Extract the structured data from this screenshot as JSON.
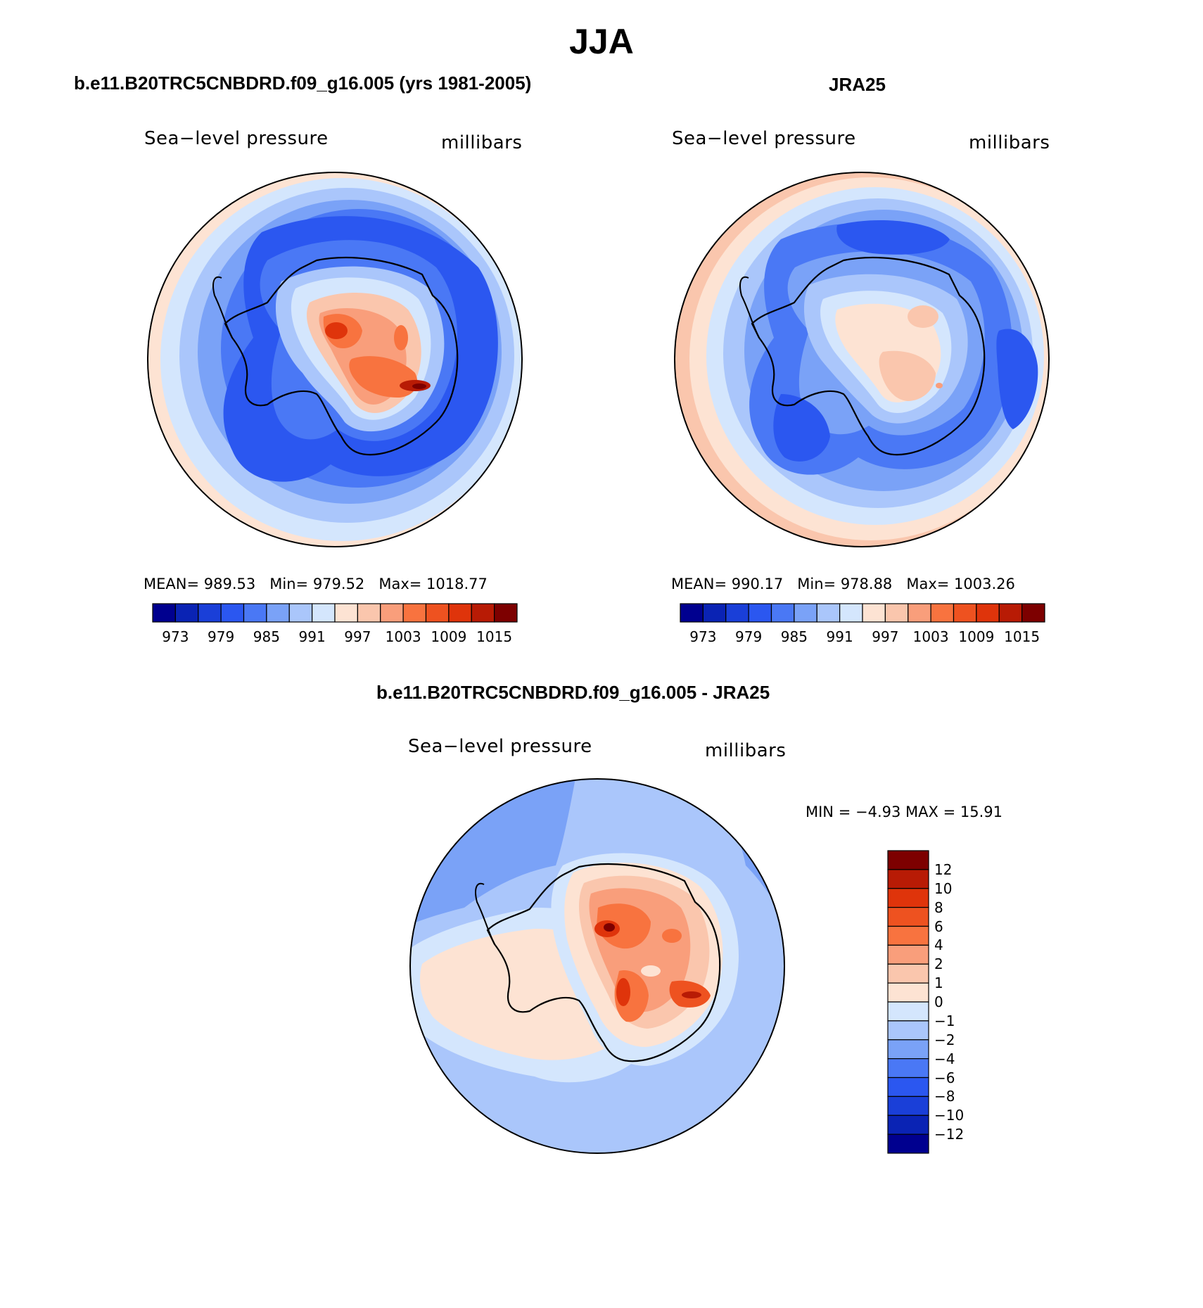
{
  "figure": {
    "season": "JJA",
    "left_title": "b.e11.B20TRC5CNBDRD.f09_g16.005 (yrs 1981-2005)",
    "right_title": "JRA25",
    "diff_title": "b.e11.B20TRC5CNBDRD.f09_g16.005 - JRA25"
  },
  "panels": {
    "model": {
      "variable": "Sea−level pressure",
      "units": "millibars",
      "mean_label": "MEAN=",
      "mean": "989.53",
      "min_label": "Min=",
      "min": "979.52",
      "max_label": "Max=",
      "max": "1018.77",
      "colorbar_ticks": [
        "973",
        "979",
        "985",
        "991",
        "997",
        "1003",
        "1009",
        "1015"
      ]
    },
    "obs": {
      "variable": "Sea−level pressure",
      "units": "millibars",
      "mean_label": "MEAN=",
      "mean": "990.17",
      "min_label": "Min=",
      "min": "978.88",
      "max_label": "Max=",
      "max": "1003.26",
      "colorbar_ticks": [
        "973",
        "979",
        "985",
        "991",
        "997",
        "1003",
        "1009",
        "1015"
      ]
    },
    "diff": {
      "variable": "Sea−level pressure",
      "units": "millibars",
      "min_label": "MIN =",
      "min": "−4.93",
      "max_label": "MAX =",
      "max": "15.91",
      "colorbar_ticks": [
        "12",
        "10",
        "8",
        "6",
        "4",
        "2",
        "1",
        "0",
        "−1",
        "−2",
        "−4",
        "−6",
        "−8",
        "−10",
        "−12"
      ]
    }
  },
  "colors": {
    "abs_scale": [
      "#00008f",
      "#0a23b4",
      "#1a3fd8",
      "#2b57f0",
      "#4a78f5",
      "#7aa2f7",
      "#aac6fb",
      "#d4e6fd",
      "#fde3d3",
      "#fac6ad",
      "#f99e7b",
      "#f8733f",
      "#ee5220",
      "#df340b",
      "#b81b05",
      "#7d0000"
    ],
    "diff_scale": [
      "#7d0000",
      "#b81b05",
      "#df340b",
      "#ee5220",
      "#f8733f",
      "#f99e7b",
      "#fac6ad",
      "#fde3d3",
      "#d4e6fd",
      "#aac6fb",
      "#7aa2f7",
      "#4a78f5",
      "#2b57f0",
      "#1a3fd8",
      "#0a23b4",
      "#00008f"
    ]
  }
}
